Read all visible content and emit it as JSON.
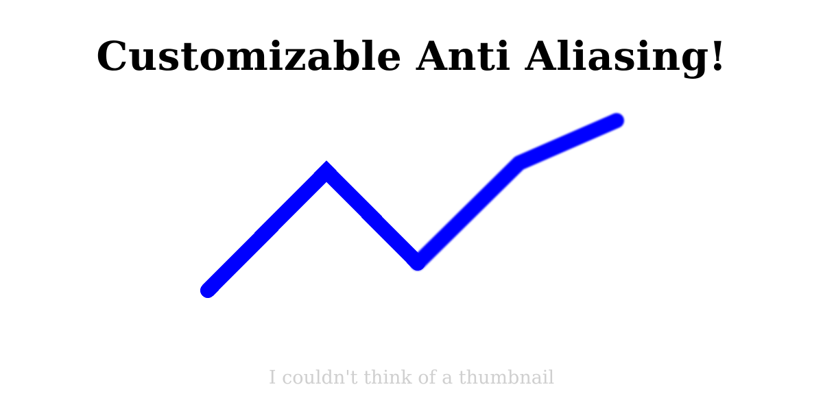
{
  "title": "Customizable Anti Aliasing!",
  "caption": "I couldn't think of a thumbnail",
  "colors": {
    "background": "#ffffff",
    "title": "#000000",
    "caption": "#cfcfcf",
    "line": "#0000ff"
  }
}
